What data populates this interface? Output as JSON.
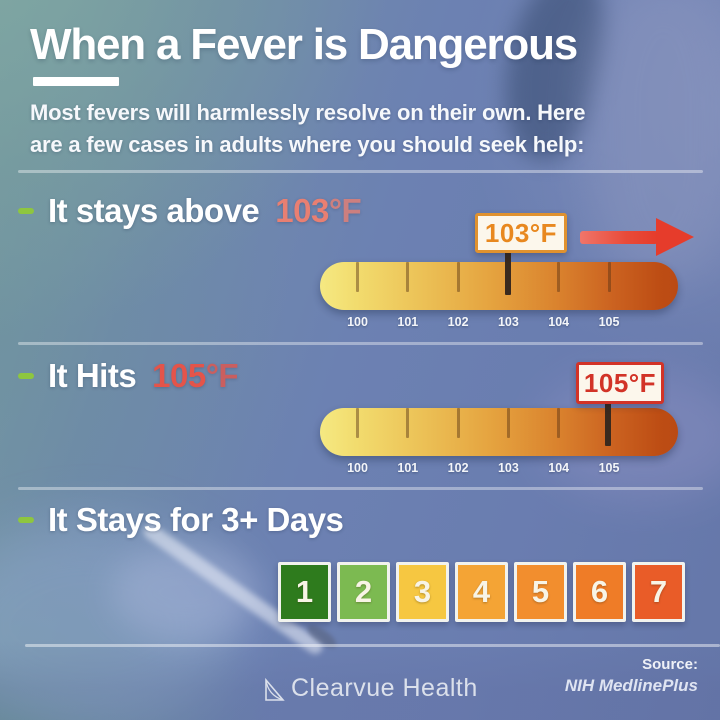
{
  "header": {
    "title": "When a Fever is Dangerous",
    "subtitle_line1": "Most fevers will harmlessly resolve on their own. Here",
    "subtitle_line2": "are a few cases in adults where you should seek help:"
  },
  "cases": [
    {
      "heading_text": "It stays above",
      "heading_value": "103",
      "heading_unit": "°F",
      "callout": "103°F",
      "marker": "103",
      "scale_labels": [
        "100",
        "101",
        "102",
        "103",
        "104",
        "105"
      ]
    },
    {
      "heading_text": "It Hits",
      "heading_value": "105",
      "heading_unit": "°F",
      "callout": "105°F",
      "marker": "105",
      "scale_labels": [
        "100",
        "101",
        "102",
        "103",
        "104",
        "105"
      ]
    },
    {
      "heading_text": "It Stays for 3+ Days"
    }
  ],
  "day_scale": [
    {
      "label": "1",
      "color": "#2e7b1d"
    },
    {
      "label": "2",
      "color": "#7cba51"
    },
    {
      "label": "3",
      "color": "#f6c741"
    },
    {
      "label": "4",
      "color": "#f4a435"
    },
    {
      "label": "5",
      "color": "#f28e2e"
    },
    {
      "label": "6",
      "color": "#ef7c27"
    },
    {
      "label": "7",
      "color": "#e95c28"
    }
  ],
  "footer": {
    "brand": "Clearvue Health",
    "source_label": "Source:",
    "source_value": "NIH MedlinePlus"
  },
  "colors": {
    "bullet_green": "#8ec63f",
    "value_103": "#e87f72",
    "value_105": "#e4544a",
    "callout_103_border": "#e0922f",
    "callout_103_text": "#e8881f",
    "callout_105": "#d23327",
    "arrow_red": "#e63c2b",
    "scale_gradient_start": "#f5e982",
    "scale_gradient_end": "#ba4a13"
  }
}
